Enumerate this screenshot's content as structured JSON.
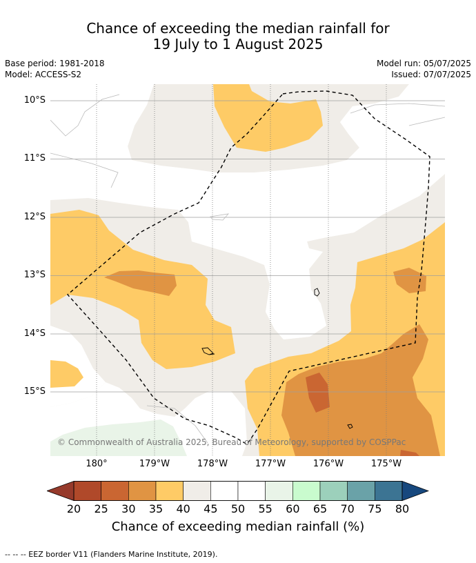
{
  "title": {
    "line1": "Chance of exceeding the median rainfall for",
    "line2": "19 July to 1 August 2025"
  },
  "meta": {
    "base_period": "Base period: 1981-2018",
    "model": "Model: ACCESS-S2",
    "model_run": "Model run: 05/07/2025",
    "issued": "Issued: 07/07/2025"
  },
  "map": {
    "lat_ticks": [
      "10°S",
      "11°S",
      "12°S",
      "13°S",
      "14°S",
      "15°S"
    ],
    "lon_ticks": [
      "180°",
      "179°W",
      "178°W",
      "177°W",
      "176°W",
      "175°W"
    ],
    "copyright": "© Commonwealth of Australia 2025, Bureau of Meteorology, supported by COSPPac",
    "colors": {
      "c35_40": "#fecb66",
      "c30_35": "#e09443",
      "c25_30": "#ca6632",
      "c20_25": "#b0492a",
      "c40_45": "#f0ede8",
      "c55_60": "#e9f4e8",
      "eez": "#000000"
    }
  },
  "colorbar": {
    "ticks": [
      "20",
      "25",
      "30",
      "35",
      "40",
      "45",
      "50",
      "55",
      "60",
      "65",
      "70",
      "75",
      "80"
    ],
    "colors": [
      "#b0492a",
      "#ca6632",
      "#e09443",
      "#fecb66",
      "#f0ede8",
      "#ffffff",
      "#ffffff",
      "#e9f4e8",
      "#c9fbce",
      "#9cd0bb",
      "#6aa2a8",
      "#3c7493"
    ],
    "under_color": "#963a2b",
    "over_color": "#17487e",
    "label": "Chance of exceeding median rainfall (%)"
  },
  "footnote": "--  --  -- EEZ border V11 (Flanders Marine Institute, 2019)."
}
